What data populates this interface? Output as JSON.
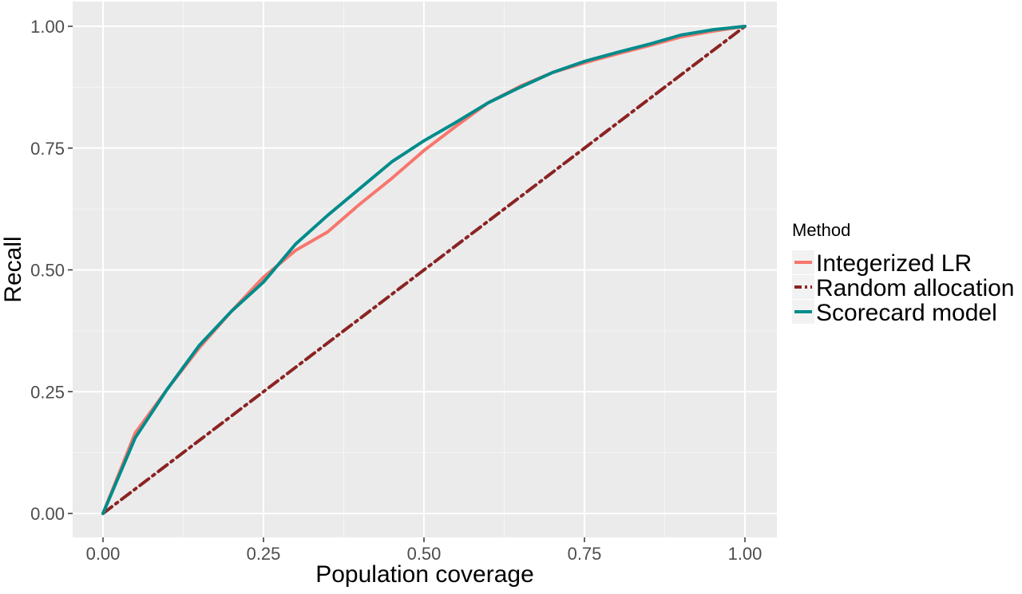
{
  "chart_data": {
    "type": "line",
    "title": "",
    "xlabel": "Population coverage",
    "ylabel": "Recall",
    "xlim": [
      0,
      1
    ],
    "ylim": [
      0,
      1
    ],
    "x_ticks": [
      0,
      0.25,
      0.5,
      0.75,
      1
    ],
    "x_tick_labels": [
      "0.00",
      "0.25",
      "0.50",
      "0.75",
      "1.00"
    ],
    "y_ticks": [
      0,
      0.25,
      0.5,
      0.75,
      1
    ],
    "y_tick_labels": [
      "0.00",
      "0.25",
      "0.50",
      "0.75",
      "1.00"
    ],
    "grid": true,
    "legend": {
      "title": "Method",
      "position": "right"
    },
    "series": [
      {
        "name": "Integerized LR",
        "color": "#F8766D",
        "dash": "solid",
        "points": [
          [
            0,
            0
          ],
          [
            0.05,
            0.165
          ],
          [
            0.1,
            0.255
          ],
          [
            0.15,
            0.34
          ],
          [
            0.2,
            0.415
          ],
          [
            0.25,
            0.485
          ],
          [
            0.3,
            0.54
          ],
          [
            0.35,
            0.578
          ],
          [
            0.4,
            0.635
          ],
          [
            0.45,
            0.688
          ],
          [
            0.5,
            0.745
          ],
          [
            0.55,
            0.795
          ],
          [
            0.6,
            0.843
          ],
          [
            0.65,
            0.877
          ],
          [
            0.7,
            0.905
          ],
          [
            0.75,
            0.925
          ],
          [
            0.8,
            0.943
          ],
          [
            0.85,
            0.96
          ],
          [
            0.9,
            0.978
          ],
          [
            0.95,
            0.99
          ],
          [
            1,
            1
          ]
        ]
      },
      {
        "name": "Random allocation",
        "color": "#8B2323",
        "dash": "dotdash",
        "points": [
          [
            0,
            0
          ],
          [
            0.25,
            0.25
          ],
          [
            0.5,
            0.5
          ],
          [
            0.75,
            0.75
          ],
          [
            1,
            1
          ]
        ]
      },
      {
        "name": "Scorecard model",
        "color": "#008B8B",
        "dash": "solid",
        "points": [
          [
            0,
            0
          ],
          [
            0.05,
            0.155
          ],
          [
            0.1,
            0.255
          ],
          [
            0.15,
            0.345
          ],
          [
            0.2,
            0.415
          ],
          [
            0.25,
            0.475
          ],
          [
            0.3,
            0.553
          ],
          [
            0.35,
            0.612
          ],
          [
            0.4,
            0.667
          ],
          [
            0.45,
            0.722
          ],
          [
            0.5,
            0.765
          ],
          [
            0.55,
            0.803
          ],
          [
            0.6,
            0.843
          ],
          [
            0.65,
            0.875
          ],
          [
            0.7,
            0.905
          ],
          [
            0.75,
            0.928
          ],
          [
            0.8,
            0.946
          ],
          [
            0.85,
            0.963
          ],
          [
            0.9,
            0.982
          ],
          [
            0.95,
            0.993
          ],
          [
            1,
            1
          ]
        ]
      }
    ]
  }
}
